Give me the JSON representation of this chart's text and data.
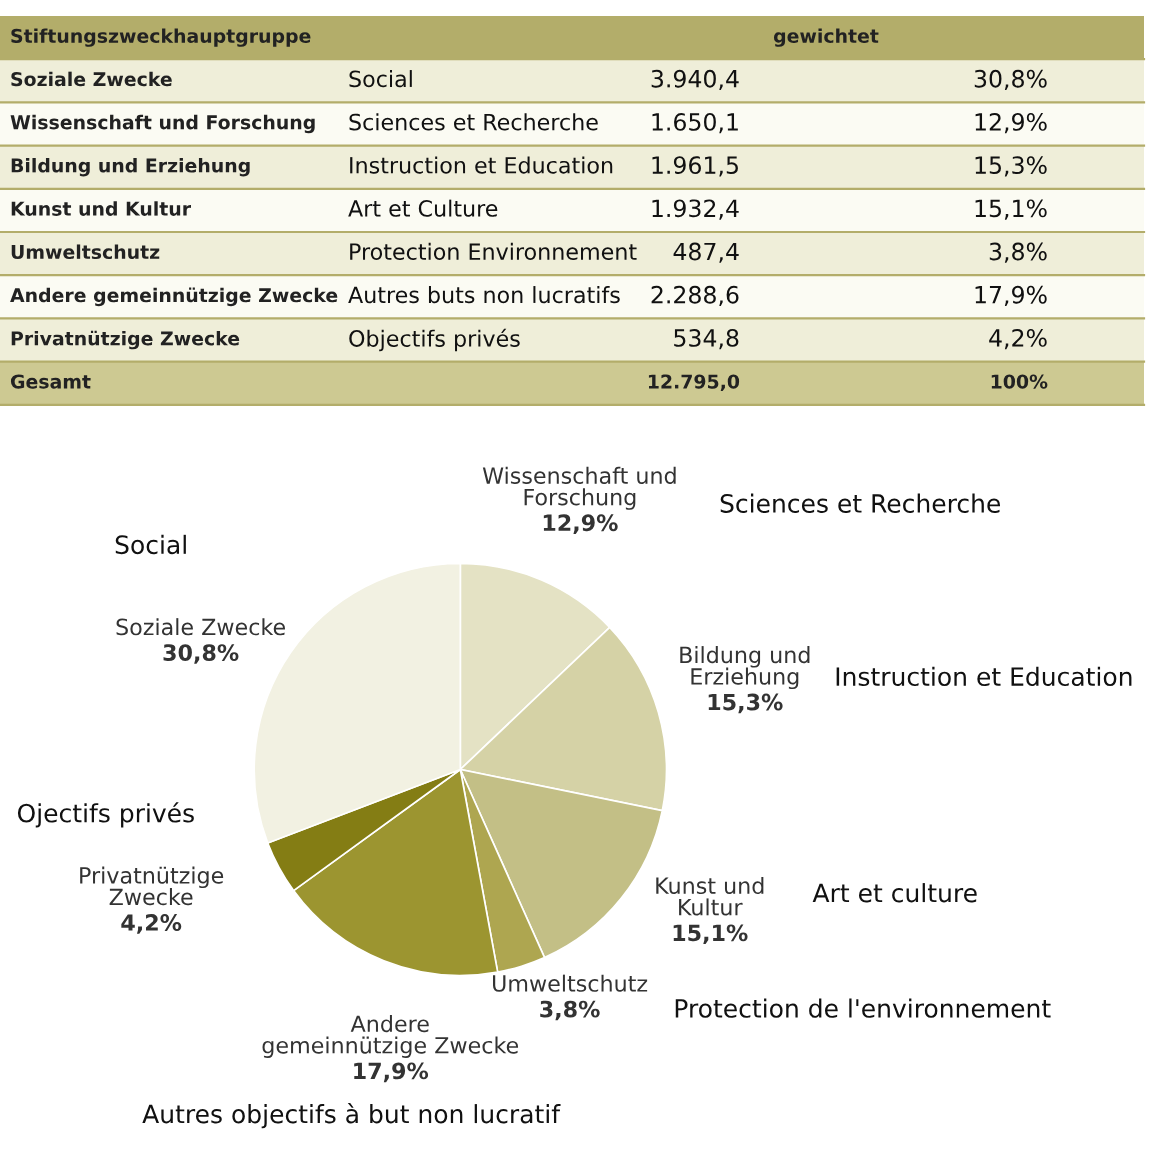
{
  "chart_data": {
    "type": "pie",
    "categories": [
      "Wissenschaft und\nForschung",
      "Bildung und\nErziehung",
      "Kunst und\nKultur",
      "Umweltschutz",
      "Andere\ngemeinnützige Zwecke",
      "Privatnützige\nZwecke",
      "Soziale Zwecke"
    ],
    "values": [
      12.9,
      15.3,
      15.1,
      3.8,
      17.9,
      4.2,
      30.8
    ],
    "value_labels": [
      "12,9%",
      "15,3%",
      "15,1%",
      "3,8%",
      "17,9%",
      "4,2%",
      "30,8%"
    ],
    "colors": [
      "#e4e2c4",
      "#d5d2a6",
      "#c3bf86",
      "#aea650",
      "#9c9530",
      "#847d14",
      "#f2f1e2"
    ],
    "annotations": [
      {
        "text": "Sciences et Recherche",
        "x": "Wissenschaft und\nForschung"
      },
      {
        "text": "Instruction et Education",
        "x": "Bildung und\nErziehung"
      },
      {
        "text": "Art et culture",
        "x": "Kunst und\nKultur"
      },
      {
        "text": "Protection de l'environnement",
        "x": "Umweltschutz"
      },
      {
        "text": "Autres objectifs à but non lucratif",
        "x": "Andere\ngemeinnützige Zwecke"
      },
      {
        "text": "Ojectifs privés",
        "x": "Privatnützige\nZwecke"
      },
      {
        "text": "Social",
        "x": "Soziale Zwecke"
      },
      "Stiftungszweckhauptgruppe\tgewichtet",
      "Soziale Zwecke\tSocial\t3.940,4\t30,8%",
      "Wissenschaft und Forschung\tSciences et Recherche\t1.650,1\t12,9%",
      "Bildung und Erziehung\tInstruction et Education\t1.961,5\t15,3%",
      "Kunst und Kultur\tArt et Culture\t1.932,4\t15,1%",
      "Umweltschutz\tProtection Environnement\t487,4\t3,8%",
      "Andere gemeinnützige Zwecke\tAutres buts non lucratifs\t2.288,6\t17,9%",
      "Privatnützige Zwecke\tObjectifs privés\t534,8\t4,2%",
      "Gesamt\t\t12.795,0\t100%"
    ]
  }
}
